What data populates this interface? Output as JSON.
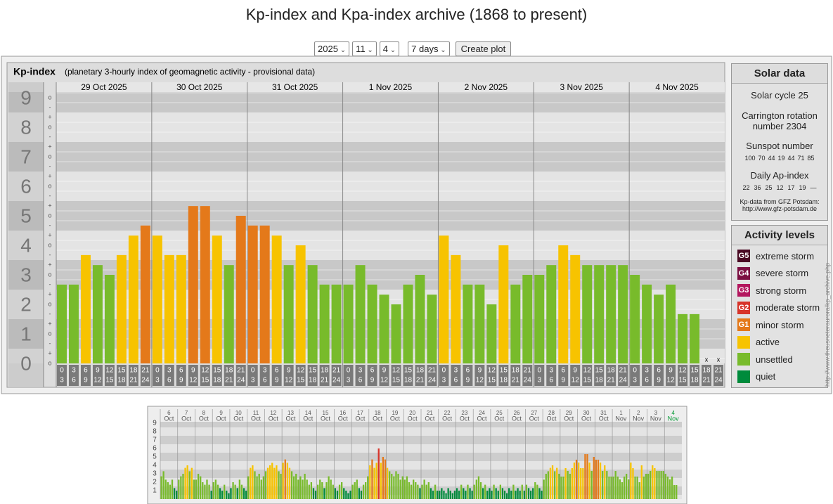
{
  "header": {
    "title": "Kp-index and Kpa-index archive (1868 to present)"
  },
  "controls": {
    "year": "2025",
    "month": "11",
    "day": "4",
    "period": "7 days",
    "button": "Create plot"
  },
  "kp_chart": {
    "title": "Kp-index",
    "subtitle": "(planetary 3-hourly index of geomagnetic activity - provisional data)",
    "yticks": [
      0,
      1,
      2,
      3,
      4,
      5,
      6,
      7,
      8,
      9
    ],
    "sub_labels": [
      "-",
      "o",
      "+"
    ],
    "missing_mark": "x",
    "hour_labels": [
      [
        "0",
        "3"
      ],
      [
        "3",
        "6"
      ],
      [
        "6",
        "9"
      ],
      [
        "9",
        "12"
      ],
      [
        "12",
        "15"
      ],
      [
        "15",
        "18"
      ],
      [
        "18",
        "21"
      ],
      [
        "21",
        "24"
      ]
    ],
    "days": [
      {
        "date": "29 Oct 2025",
        "values": [
          2.67,
          2.67,
          3.67,
          3.33,
          3,
          3.67,
          4.33,
          4.67
        ]
      },
      {
        "date": "30 Oct 2025",
        "values": [
          4.33,
          3.67,
          3.67,
          5.33,
          5.33,
          4.33,
          3.33,
          5
        ]
      },
      {
        "date": "31 Oct 2025",
        "values": [
          4.67,
          4.67,
          4.33,
          3.33,
          4,
          3.33,
          2.67,
          2.67
        ]
      },
      {
        "date": "1 Nov 2025",
        "values": [
          2.67,
          3.33,
          2.67,
          2.33,
          2,
          2.67,
          3,
          2.33
        ]
      },
      {
        "date": "2 Nov 2025",
        "values": [
          4.33,
          3.67,
          2.67,
          2.67,
          2,
          4,
          2.67,
          3
        ]
      },
      {
        "date": "3 Nov 2025",
        "values": [
          3,
          3.33,
          4,
          3.67,
          3.33,
          3.33,
          3.33,
          3.33
        ]
      },
      {
        "date": "4 Nov 2025",
        "values": [
          3,
          2.67,
          2.33,
          2.67,
          1.67,
          1.67,
          null,
          null
        ]
      }
    ]
  },
  "solar_data": {
    "title": "Solar data",
    "cycle": "Solar cycle 25",
    "carrington": "Carrington rotation number 2304",
    "sunspot_title": "Sunspot number",
    "sunspot_values": [
      100,
      70,
      44,
      19,
      44,
      71,
      85
    ],
    "ap_title": "Daily Ap-index",
    "ap_values": [
      "22",
      "36",
      "25",
      "12",
      "17",
      "19",
      "—"
    ],
    "source": "Kp-data from GFZ Potsdam:",
    "source_url": "http://www.gfz-potsdam.de"
  },
  "activity_levels": {
    "title": "Activity levels",
    "items": [
      {
        "badge": "G5",
        "label": "extreme storm",
        "color": "#4a0a24",
        "min": 8.5
      },
      {
        "badge": "G4",
        "label": "severe storm",
        "color": "#7c0f42",
        "min": 7.5
      },
      {
        "badge": "G3",
        "label": "strong storm",
        "color": "#b3175e",
        "min": 6.5
      },
      {
        "badge": "G2",
        "label": "moderate storm",
        "color": "#d7342a",
        "min": 5.5
      },
      {
        "badge": "G1",
        "label": "minor storm",
        "color": "#e4791a",
        "min": 4.5
      },
      {
        "label": "active",
        "color": "#f7c300",
        "min": 3.5
      },
      {
        "label": "unsettled",
        "color": "#78bb2b",
        "min": 1.5
      },
      {
        "label": "quiet",
        "color": "#008b3c",
        "min": 0
      }
    ]
  },
  "side_url": "http://www.theusneteraurora/kp_archive.php",
  "thumbnail": {
    "yticks": [
      1,
      2,
      3,
      4,
      5,
      6,
      7,
      8,
      9
    ],
    "days": [
      {
        "day": "6",
        "month": "Oct",
        "values": [
          2.7,
          3.3,
          2.3,
          2,
          1.7,
          2.3,
          1.3,
          1
        ]
      },
      {
        "day": "7",
        "month": "Oct",
        "values": [
          2.3,
          2.7,
          3,
          3.7,
          4,
          3.3,
          3.7,
          2.3
        ]
      },
      {
        "day": "8",
        "month": "Oct",
        "values": [
          2.3,
          3,
          2.7,
          2,
          1.7,
          2.3,
          1.7,
          1
        ]
      },
      {
        "day": "9",
        "month": "Oct",
        "values": [
          2,
          2.3,
          1.7,
          1.3,
          1,
          1.7,
          1,
          0.7
        ]
      },
      {
        "day": "10",
        "month": "Oct",
        "values": [
          1.3,
          2,
          1.7,
          1.3,
          2.3,
          1.7,
          1.3,
          1
        ]
      },
      {
        "day": "11",
        "month": "Oct",
        "values": [
          2.7,
          3.7,
          4,
          3.3,
          2.7,
          3,
          2.3,
          2.7
        ]
      },
      {
        "day": "12",
        "month": "Oct",
        "values": [
          3.3,
          3.7,
          4,
          4.3,
          3.7,
          4,
          3.3,
          3
        ]
      },
      {
        "day": "13",
        "month": "Oct",
        "values": [
          4.3,
          4.7,
          4.3,
          3.7,
          3.3,
          2.7,
          3,
          2.3
        ]
      },
      {
        "day": "14",
        "month": "Oct",
        "values": [
          2.7,
          2.3,
          3,
          2.3,
          1.7,
          2,
          1.3,
          1
        ]
      },
      {
        "day": "15",
        "month": "Oct",
        "values": [
          1.7,
          2.3,
          2,
          1.3,
          2,
          2.7,
          2.3,
          1.7
        ]
      },
      {
        "day": "16",
        "month": "Oct",
        "values": [
          1.3,
          1,
          1.7,
          2,
          1.3,
          1,
          0.7,
          1
        ]
      },
      {
        "day": "17",
        "month": "Oct",
        "values": [
          1.7,
          2,
          2.3,
          1.3,
          1,
          1.7,
          2,
          2.7
        ]
      },
      {
        "day": "18",
        "month": "Oct",
        "values": [
          4,
          4.7,
          3.7,
          4.3,
          6,
          4.3,
          5,
          4.7
        ]
      },
      {
        "day": "19",
        "month": "Oct",
        "values": [
          3.7,
          3.3,
          3,
          2.7,
          3.3,
          3,
          2.3,
          2.7
        ]
      },
      {
        "day": "20",
        "month": "Oct",
        "values": [
          2.3,
          2.7,
          2,
          1.7,
          2.3,
          2,
          1.7,
          1.3
        ]
      },
      {
        "day": "21",
        "month": "Oct",
        "values": [
          1.7,
          2.3,
          1.7,
          2,
          1.3,
          1,
          1.7,
          1
        ]
      },
      {
        "day": "22",
        "month": "Oct",
        "values": [
          1,
          1.3,
          1,
          0.7,
          1.3,
          1,
          0.7,
          1
        ]
      },
      {
        "day": "23",
        "month": "Oct",
        "values": [
          1.3,
          1,
          1.7,
          1.3,
          1,
          1.7,
          1.3,
          1
        ]
      },
      {
        "day": "24",
        "month": "Oct",
        "values": [
          1.7,
          2.3,
          2.7,
          2,
          1.3,
          1.7,
          1,
          1.3
        ]
      },
      {
        "day": "25",
        "month": "Oct",
        "values": [
          1,
          1.7,
          1.3,
          1,
          1.7,
          1.3,
          1,
          0.7
        ]
      },
      {
        "day": "26",
        "month": "Oct",
        "values": [
          1.3,
          1,
          1.7,
          1,
          1.3,
          1,
          1.7,
          1
        ]
      },
      {
        "day": "27",
        "month": "Oct",
        "values": [
          1.7,
          1.3,
          1,
          1.3,
          2,
          1.7,
          1.3,
          1
        ]
      },
      {
        "day": "28",
        "month": "Oct",
        "values": [
          2.3,
          3,
          3.3,
          3.7,
          4,
          3.3,
          3.7,
          3
        ]
      },
      {
        "day": "29",
        "month": "Oct",
        "values": [
          2.67,
          2.67,
          3.67,
          3.33,
          3,
          3.67,
          4.33,
          4.67
        ]
      },
      {
        "day": "30",
        "month": "Oct",
        "values": [
          4.33,
          3.67,
          3.67,
          5.33,
          5.33,
          4.33,
          3.33,
          5
        ]
      },
      {
        "day": "31",
        "month": "Oct",
        "values": [
          4.67,
          4.67,
          4.33,
          3.33,
          4,
          3.33,
          2.67,
          2.67
        ]
      },
      {
        "day": "1",
        "month": "Nov",
        "values": [
          2.67,
          3.33,
          2.67,
          2.33,
          2,
          2.67,
          3,
          2.33
        ]
      },
      {
        "day": "2",
        "month": "Nov",
        "values": [
          4.33,
          3.67,
          2.67,
          2.67,
          2,
          4,
          2.67,
          3
        ]
      },
      {
        "day": "3",
        "month": "Nov",
        "values": [
          3,
          3.33,
          4,
          3.67,
          3.33,
          3.33,
          3.33,
          3.33
        ]
      },
      {
        "day": "4",
        "month": "Nov",
        "values": [
          3,
          2.67,
          2.33,
          2.67,
          1.67,
          1.67,
          null,
          null
        ]
      }
    ]
  }
}
